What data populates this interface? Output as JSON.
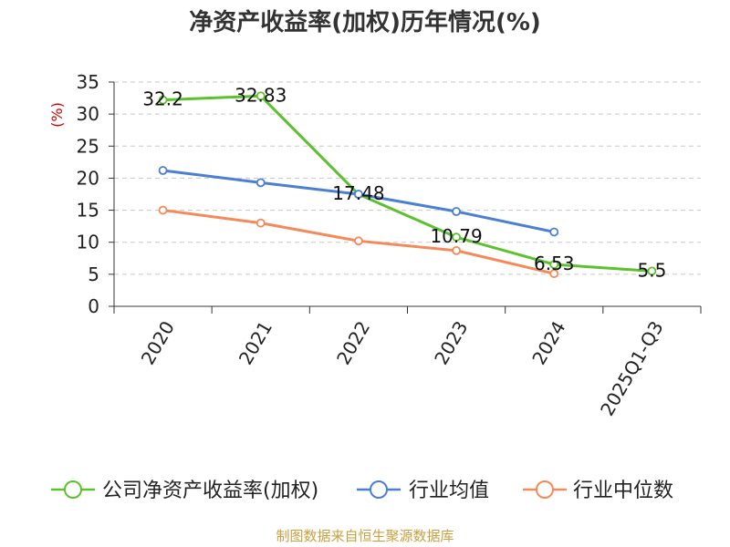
{
  "chart_data": {
    "type": "line",
    "title": "净资产收益率(加权)历年情况(%)",
    "ylabel": "(%)",
    "xlabel": "",
    "categories": [
      "2020",
      "2021",
      "2022",
      "2023",
      "2024",
      "2025Q1-Q3"
    ],
    "ylim": [
      0,
      35
    ],
    "yticks": [
      0,
      5,
      10,
      15,
      20,
      25,
      30,
      35
    ],
    "grid": true,
    "legend_position": "bottom",
    "series": [
      {
        "name": "公司净资产收益率(加权)",
        "color": "#5cc12c",
        "values": [
          32.2,
          32.83,
          17.48,
          10.79,
          6.53,
          5.5
        ],
        "labels": [
          "32.2",
          "32.83",
          "17.48",
          "10.79",
          "6.53",
          "5.5"
        ]
      },
      {
        "name": "行业均值",
        "color": "#4a7fd4",
        "values": [
          21.2,
          19.3,
          17.5,
          14.8,
          11.6,
          null
        ]
      },
      {
        "name": "行业中位数",
        "color": "#f5895a",
        "values": [
          15.0,
          13.0,
          10.2,
          8.7,
          5.1,
          null
        ]
      }
    ]
  },
  "footer": "制图数据来自恒生聚源数据库"
}
